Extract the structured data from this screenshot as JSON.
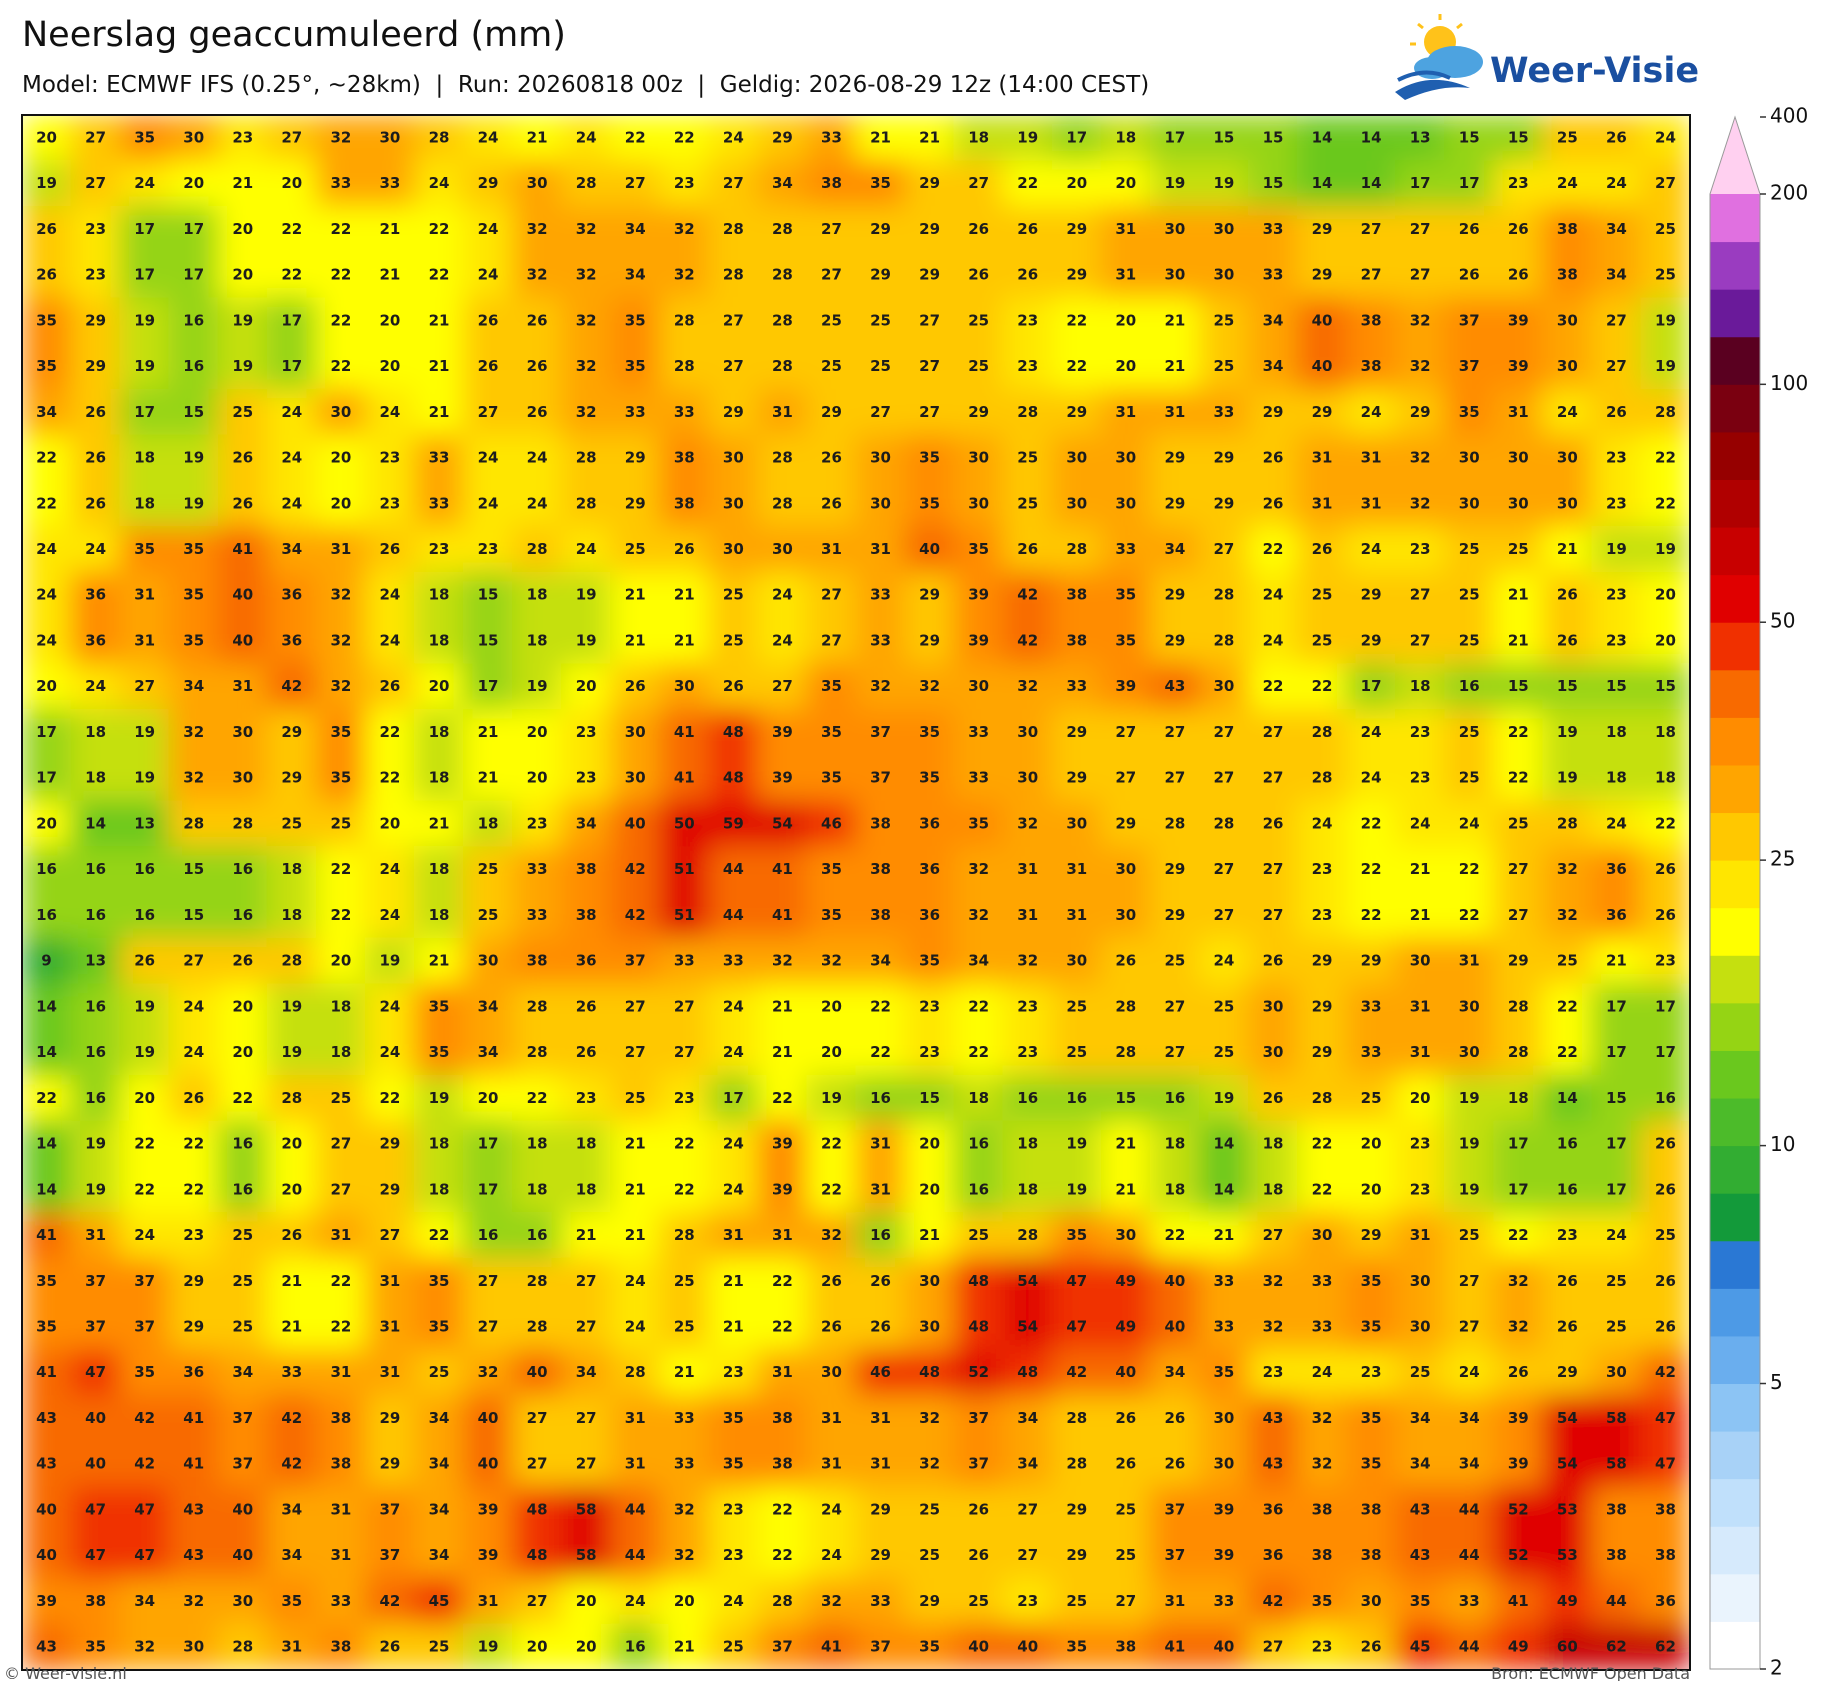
{
  "header": {
    "title": "Neerslag geaccumuleerd (mm)",
    "subtitle": "Model: ECMWF IFS (0.25°, ~28km)  |  Run: 20260818 00z  |  Geldig: 2026-08-29 12z (14:00 CEST)",
    "logo": "Weer-Visie"
  },
  "map": {
    "grid": [
      [
        20,
        27,
        35,
        30,
        23,
        27,
        32,
        30,
        28,
        24,
        21,
        24,
        22,
        22,
        24,
        29,
        33,
        21,
        21,
        18,
        19,
        17,
        18,
        17,
        15,
        15,
        14,
        14,
        13,
        15,
        15,
        25,
        26,
        24
      ],
      [
        19,
        27,
        24,
        20,
        21,
        20,
        33,
        33,
        24,
        29,
        30,
        28,
        27,
        23,
        27,
        34,
        38,
        35,
        29,
        27,
        22,
        20,
        20,
        19,
        19,
        15,
        14,
        14,
        17,
        17,
        23,
        24,
        24,
        27
      ],
      [
        26,
        23,
        17,
        17,
        20,
        22,
        22,
        21,
        22,
        24,
        32,
        32,
        34,
        32,
        28,
        28,
        27,
        29,
        29,
        26,
        26,
        29,
        31,
        30,
        30,
        33,
        29,
        27,
        27,
        26,
        26,
        38,
        34,
        25
      ],
      [
        26,
        23,
        17,
        17,
        20,
        22,
        22,
        21,
        22,
        24,
        32,
        32,
        34,
        32,
        28,
        28,
        27,
        29,
        29,
        26,
        26,
        29,
        31,
        30,
        30,
        33,
        29,
        27,
        27,
        26,
        26,
        38,
        34,
        25
      ],
      [
        35,
        29,
        19,
        16,
        19,
        17,
        22,
        20,
        21,
        26,
        26,
        32,
        35,
        28,
        27,
        28,
        25,
        25,
        27,
        25,
        23,
        22,
        20,
        21,
        25,
        34,
        40,
        38,
        32,
        37,
        39,
        30,
        27,
        19
      ],
      [
        35,
        29,
        19,
        16,
        19,
        17,
        22,
        20,
        21,
        26,
        26,
        32,
        35,
        28,
        27,
        28,
        25,
        25,
        27,
        25,
        23,
        22,
        20,
        21,
        25,
        34,
        40,
        38,
        32,
        37,
        39,
        30,
        27,
        19
      ],
      [
        34,
        26,
        17,
        15,
        25,
        24,
        30,
        24,
        21,
        27,
        26,
        32,
        33,
        33,
        29,
        31,
        29,
        27,
        27,
        29,
        28,
        29,
        31,
        31,
        33,
        29,
        29,
        24,
        29,
        35,
        31,
        24,
        26,
        28
      ],
      [
        22,
        26,
        18,
        19,
        26,
        24,
        20,
        23,
        33,
        24,
        24,
        28,
        29,
        38,
        30,
        28,
        26,
        30,
        35,
        30,
        25,
        30,
        30,
        29,
        29,
        26,
        31,
        31,
        32,
        30,
        30,
        30,
        23,
        22
      ],
      [
        22,
        26,
        18,
        19,
        26,
        24,
        20,
        23,
        33,
        24,
        24,
        28,
        29,
        38,
        30,
        28,
        26,
        30,
        35,
        30,
        25,
        30,
        30,
        29,
        29,
        26,
        31,
        31,
        32,
        30,
        30,
        30,
        23,
        22
      ],
      [
        24,
        24,
        35,
        35,
        41,
        34,
        31,
        26,
        23,
        23,
        28,
        24,
        25,
        26,
        30,
        30,
        31,
        31,
        40,
        35,
        26,
        28,
        33,
        34,
        27,
        22,
        26,
        24,
        23,
        25,
        25,
        21,
        19,
        19
      ],
      [
        24,
        36,
        31,
        35,
        40,
        36,
        32,
        24,
        18,
        15,
        18,
        19,
        21,
        21,
        25,
        24,
        27,
        33,
        29,
        39,
        42,
        38,
        35,
        29,
        28,
        24,
        25,
        29,
        27,
        25,
        21,
        26,
        23,
        20
      ],
      [
        24,
        36,
        31,
        35,
        40,
        36,
        32,
        24,
        18,
        15,
        18,
        19,
        21,
        21,
        25,
        24,
        27,
        33,
        29,
        39,
        42,
        38,
        35,
        29,
        28,
        24,
        25,
        29,
        27,
        25,
        21,
        26,
        23,
        20
      ],
      [
        20,
        24,
        27,
        34,
        31,
        42,
        32,
        26,
        20,
        17,
        19,
        20,
        26,
        30,
        26,
        27,
        35,
        32,
        32,
        30,
        32,
        33,
        39,
        43,
        30,
        22,
        22,
        17,
        18,
        16,
        15,
        15,
        15,
        15
      ],
      [
        17,
        18,
        19,
        32,
        30,
        29,
        35,
        22,
        18,
        21,
        20,
        23,
        30,
        41,
        48,
        39,
        35,
        37,
        35,
        33,
        30,
        29,
        27,
        27,
        27,
        27,
        28,
        24,
        23,
        25,
        22,
        19,
        18,
        18
      ],
      [
        17,
        18,
        19,
        32,
        30,
        29,
        35,
        22,
        18,
        21,
        20,
        23,
        30,
        41,
        48,
        39,
        35,
        37,
        35,
        33,
        30,
        29,
        27,
        27,
        27,
        27,
        28,
        24,
        23,
        25,
        22,
        19,
        18,
        18
      ],
      [
        20,
        14,
        13,
        28,
        28,
        25,
        25,
        20,
        21,
        18,
        23,
        34,
        40,
        50,
        59,
        54,
        46,
        38,
        36,
        35,
        32,
        30,
        29,
        28,
        28,
        26,
        24,
        22,
        24,
        24,
        25,
        28,
        24,
        22
      ],
      [
        16,
        16,
        16,
        15,
        16,
        18,
        22,
        24,
        18,
        25,
        33,
        38,
        42,
        51,
        44,
        41,
        35,
        38,
        36,
        32,
        31,
        31,
        30,
        29,
        27,
        27,
        23,
        22,
        21,
        22,
        27,
        32,
        36,
        26
      ],
      [
        16,
        16,
        16,
        15,
        16,
        18,
        22,
        24,
        18,
        25,
        33,
        38,
        42,
        51,
        44,
        41,
        35,
        38,
        36,
        32,
        31,
        31,
        30,
        29,
        27,
        27,
        23,
        22,
        21,
        22,
        27,
        32,
        36,
        26
      ],
      [
        9,
        13,
        26,
        27,
        26,
        28,
        20,
        19,
        21,
        30,
        38,
        36,
        37,
        33,
        33,
        32,
        32,
        34,
        35,
        34,
        32,
        30,
        26,
        25,
        24,
        26,
        29,
        29,
        30,
        31,
        29,
        25,
        21,
        23
      ],
      [
        14,
        16,
        19,
        24,
        20,
        19,
        18,
        24,
        35,
        34,
        28,
        26,
        27,
        27,
        24,
        21,
        20,
        22,
        23,
        22,
        23,
        25,
        28,
        27,
        25,
        30,
        29,
        33,
        31,
        30,
        28,
        22,
        17,
        17
      ],
      [
        14,
        16,
        19,
        24,
        20,
        19,
        18,
        24,
        35,
        34,
        28,
        26,
        27,
        27,
        24,
        21,
        20,
        22,
        23,
        22,
        23,
        25,
        28,
        27,
        25,
        30,
        29,
        33,
        31,
        30,
        28,
        22,
        17,
        17
      ],
      [
        22,
        16,
        20,
        26,
        22,
        28,
        25,
        22,
        19,
        20,
        22,
        23,
        25,
        23,
        17,
        22,
        19,
        16,
        15,
        18,
        16,
        16,
        15,
        16,
        19,
        26,
        28,
        25,
        20,
        19,
        18,
        14,
        15,
        16
      ],
      [
        14,
        19,
        22,
        22,
        16,
        20,
        27,
        29,
        18,
        17,
        18,
        18,
        21,
        22,
        24,
        39,
        22,
        31,
        20,
        16,
        18,
        19,
        21,
        18,
        14,
        18,
        22,
        20,
        23,
        19,
        17,
        16,
        17,
        26
      ],
      [
        14,
        19,
        22,
        22,
        16,
        20,
        27,
        29,
        18,
        17,
        18,
        18,
        21,
        22,
        24,
        39,
        22,
        31,
        20,
        16,
        18,
        19,
        21,
        18,
        14,
        18,
        22,
        20,
        23,
        19,
        17,
        16,
        17,
        26
      ],
      [
        41,
        31,
        24,
        23,
        25,
        26,
        31,
        27,
        22,
        16,
        16,
        21,
        21,
        28,
        31,
        31,
        32,
        16,
        21,
        25,
        28,
        35,
        30,
        22,
        21,
        27,
        30,
        29,
        31,
        25,
        22,
        23,
        24,
        25
      ],
      [
        35,
        37,
        37,
        29,
        25,
        21,
        22,
        31,
        35,
        27,
        28,
        27,
        24,
        25,
        21,
        22,
        26,
        26,
        30,
        48,
        54,
        47,
        49,
        40,
        33,
        32,
        33,
        35,
        30,
        27,
        32,
        26,
        25,
        26
      ],
      [
        35,
        37,
        37,
        29,
        25,
        21,
        22,
        31,
        35,
        27,
        28,
        27,
        24,
        25,
        21,
        22,
        26,
        26,
        30,
        48,
        54,
        47,
        49,
        40,
        33,
        32,
        33,
        35,
        30,
        27,
        32,
        26,
        25,
        26
      ],
      [
        41,
        47,
        35,
        36,
        34,
        33,
        31,
        31,
        25,
        32,
        40,
        34,
        28,
        21,
        23,
        31,
        30,
        46,
        48,
        52,
        48,
        42,
        40,
        34,
        35,
        23,
        24,
        23,
        25,
        24,
        26,
        29,
        30,
        42
      ],
      [
        43,
        40,
        42,
        41,
        37,
        42,
        38,
        29,
        34,
        40,
        27,
        27,
        31,
        33,
        35,
        38,
        31,
        31,
        32,
        37,
        34,
        28,
        26,
        26,
        30,
        43,
        32,
        35,
        34,
        34,
        39,
        54,
        58,
        47
      ],
      [
        43,
        40,
        42,
        41,
        37,
        42,
        38,
        29,
        34,
        40,
        27,
        27,
        31,
        33,
        35,
        38,
        31,
        31,
        32,
        37,
        34,
        28,
        26,
        26,
        30,
        43,
        32,
        35,
        34,
        34,
        39,
        54,
        58,
        47
      ],
      [
        40,
        47,
        47,
        43,
        40,
        34,
        31,
        37,
        34,
        39,
        48,
        58,
        44,
        32,
        23,
        22,
        24,
        29,
        25,
        26,
        27,
        29,
        25,
        37,
        39,
        36,
        38,
        38,
        43,
        44,
        52,
        53,
        38,
        38
      ],
      [
        40,
        47,
        47,
        43,
        40,
        34,
        31,
        37,
        34,
        39,
        48,
        58,
        44,
        32,
        23,
        22,
        24,
        29,
        25,
        26,
        27,
        29,
        25,
        37,
        39,
        36,
        38,
        38,
        43,
        44,
        52,
        53,
        38,
        38
      ],
      [
        39,
        38,
        34,
        32,
        30,
        35,
        33,
        42,
        45,
        31,
        27,
        20,
        24,
        20,
        24,
        28,
        32,
        33,
        29,
        25,
        23,
        25,
        27,
        31,
        33,
        42,
        35,
        30,
        35,
        33,
        41,
        49,
        44,
        36
      ],
      [
        43,
        35,
        32,
        30,
        28,
        31,
        38,
        26,
        25,
        19,
        20,
        20,
        16,
        21,
        25,
        37,
        41,
        37,
        35,
        40,
        40,
        35,
        38,
        41,
        40,
        27,
        23,
        26,
        45,
        44,
        49,
        60,
        62,
        62
      ]
    ]
  },
  "colorbar": {
    "levels": [
      2,
      2.5,
      3,
      3.5,
      4,
      4.5,
      5,
      6,
      7,
      8,
      9,
      10,
      12.5,
      15,
      17.5,
      20,
      22.5,
      25,
      30,
      35,
      40,
      45,
      50,
      60,
      70,
      80,
      90,
      100,
      125,
      150,
      175,
      200
    ],
    "max": 400,
    "colors": [
      "#ffffff",
      "#eaf4fd",
      "#d6eafc",
      "#c0e0fb",
      "#a8d2f7",
      "#8cc4f4",
      "#6aaeee",
      "#4d9ae6",
      "#2a78d4",
      "#139a3a",
      "#32ad32",
      "#4cbb2a",
      "#6ac81e",
      "#95d414",
      "#c5e00f",
      "#ffff00",
      "#ffe600",
      "#ffc800",
      "#ffa500",
      "#ff8c00",
      "#f86a00",
      "#f03000",
      "#e00000",
      "#c80000",
      "#b00000",
      "#960000",
      "#7a0010",
      "#5a0020",
      "#6a1a9a",
      "#9a3cc0",
      "#e070e0",
      "#ffd0f0"
    ],
    "ticks": [
      2,
      5,
      10,
      25,
      50,
      100,
      200,
      400
    ]
  },
  "footer": {
    "left": "© Weer-visie.nl",
    "right": "Bron: ECMWF Open Data"
  }
}
